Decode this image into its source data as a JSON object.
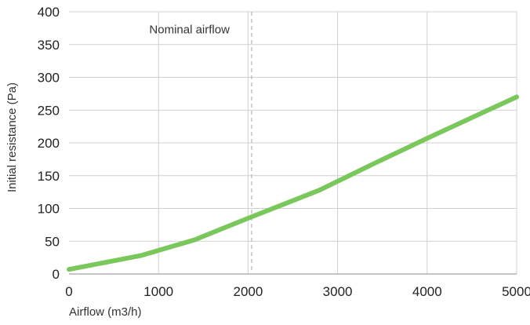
{
  "chart_data": {
    "type": "line",
    "title": "",
    "xlabel": "Airflow (m3/h)",
    "ylabel": "Initial resistance (Pa)",
    "xlim": [
      0,
      5000
    ],
    "ylim": [
      0,
      400
    ],
    "x_ticks": [
      0,
      1000,
      2000,
      3000,
      4000,
      5000
    ],
    "y_ticks": [
      0,
      50,
      100,
      150,
      200,
      250,
      300,
      350,
      400
    ],
    "x_tick_labels": [
      "0",
      "1000",
      "2000",
      "3000",
      "4000",
      "5000"
    ],
    "y_tick_labels": [
      "0",
      "50",
      "100",
      "150",
      "200",
      "250",
      "300",
      "350",
      "400"
    ],
    "grid": true,
    "legend": "none",
    "series": [
      {
        "color": "#7ac75c",
        "points": [
          {
            "x": 0,
            "y": 7
          },
          {
            "x": 800,
            "y": 28
          },
          {
            "x": 1400,
            "y": 52
          },
          {
            "x": 2000,
            "y": 85
          },
          {
            "x": 2800,
            "y": 128
          },
          {
            "x": 3400,
            "y": 168
          },
          {
            "x": 4000,
            "y": 207
          },
          {
            "x": 5000,
            "y": 270
          }
        ]
      }
    ],
    "annotations": [
      {
        "type": "vertical-dashed-line",
        "x": 2040,
        "label": "Nominal airflow"
      }
    ]
  },
  "colors": {
    "grid": "#d0d0d0",
    "axis": "#888888",
    "reference_line": "#b5b5b5",
    "series": "#7ac75c"
  }
}
